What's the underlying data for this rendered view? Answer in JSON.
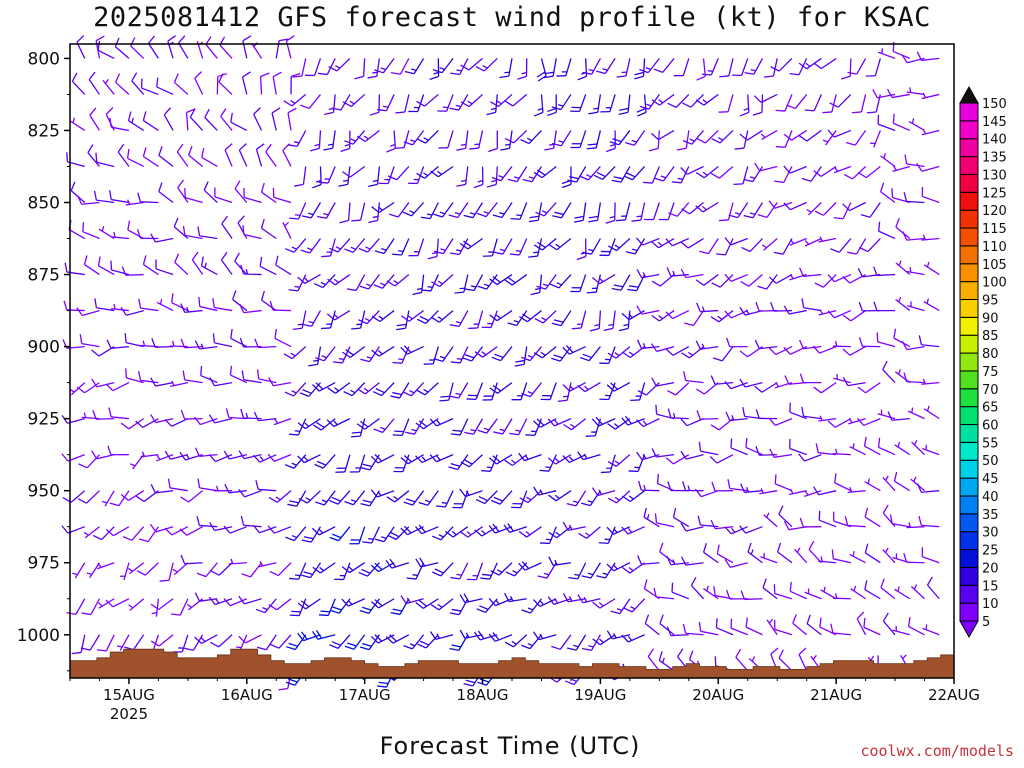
{
  "title": "2025081412 GFS forecast wind profile (kt) for KSAC",
  "credit": "coolwx.com/models",
  "chart_data": {
    "type": "wind-barb-profile",
    "xlabel": "Forecast Time (UTC)",
    "x_ticks": [
      "15AUG",
      "16AUG",
      "17AUG",
      "18AUG",
      "19AUG",
      "20AUG",
      "21AUG",
      "22AUG"
    ],
    "x_year_label": "2025",
    "y_ticks": [
      800,
      825,
      850,
      875,
      900,
      925,
      950,
      975,
      1000
    ],
    "y_range": [
      1015,
      795
    ],
    "x_range_days": [
      14.5,
      22.0
    ],
    "pressure_levels": [
      800,
      812.5,
      825,
      837.5,
      850,
      862.5,
      875,
      887.5,
      900,
      912.5,
      925,
      937.5,
      950,
      962.5,
      975,
      987.5,
      1000,
      1012.5
    ],
    "time_steps_hours": 3,
    "colorbar": {
      "levels": [
        5,
        10,
        15,
        20,
        25,
        30,
        35,
        40,
        45,
        50,
        55,
        60,
        65,
        70,
        75,
        80,
        85,
        90,
        95,
        100,
        105,
        110,
        115,
        120,
        125,
        130,
        135,
        140,
        145,
        150
      ],
      "colors": [
        "#7f00ff",
        "#5a00f0",
        "#3000e0",
        "#0010d8",
        "#0030e8",
        "#0058f0",
        "#0080f0",
        "#00a8f0",
        "#00d0e8",
        "#00e8c8",
        "#00e0a0",
        "#00e070",
        "#20e040",
        "#50e020",
        "#90e810",
        "#c8f000",
        "#f0f000",
        "#f8d000",
        "#f8b000",
        "#f89000",
        "#f07000",
        "#f05000",
        "#f03000",
        "#f01010",
        "#f00040",
        "#f00070",
        "#f000a0",
        "#f000c8",
        "#e800e0",
        "#f000f0"
      ],
      "low_triangle_color": "#7f00ff",
      "high_triangle_color": "#111111"
    },
    "wind": {
      "description": "Barbs sampled every 3 h at each pressure level; direction in degrees (from), speed in kt",
      "day_regimes": [
        {
          "day": "14AUG-15AUG",
          "dir_low": 200,
          "dir_high": 320,
          "spd_low": 8,
          "spd_high": 10
        },
        {
          "day": "15AUG-16AUG",
          "dir_low": 220,
          "dir_high": 340,
          "spd_low": 10,
          "spd_high": 10
        },
        {
          "day": "16AUG-17AUG",
          "dir_low": 230,
          "dir_high": 200,
          "spd_low": 20,
          "spd_high": 12
        },
        {
          "day": "17AUG-18AUG",
          "dir_low": 235,
          "dir_high": 200,
          "spd_low": 18,
          "spd_high": 14
        },
        {
          "day": "18AUG-19AUG",
          "dir_low": 240,
          "dir_high": 195,
          "spd_low": 15,
          "spd_high": 17
        },
        {
          "day": "19AUG-20AUG",
          "dir_low": 300,
          "dir_high": 200,
          "spd_low": 10,
          "spd_high": 12
        },
        {
          "day": "20AUG-21AUG",
          "dir_low": 310,
          "dir_high": 210,
          "spd_low": 8,
          "spd_high": 10
        },
        {
          "day": "21AUG-22AUG",
          "dir_low": 300,
          "dir_high": 280,
          "spd_low": 8,
          "spd_high": 8
        }
      ]
    },
    "terrain_surface_pressure": [
      1009,
      1009,
      1008,
      1006,
      1005,
      1005,
      1005,
      1006,
      1008,
      1008,
      1008,
      1007,
      1005,
      1005,
      1007,
      1009,
      1010,
      1010,
      1009,
      1008,
      1008,
      1009,
      1010,
      1011,
      1011,
      1010,
      1009,
      1009,
      1009,
      1010,
      1010,
      1010,
      1009,
      1008,
      1009,
      1010,
      1010,
      1010,
      1011,
      1010,
      1010,
      1011,
      1011,
      1012,
      1012,
      1011,
      1010,
      1011,
      1011,
      1012,
      1012,
      1011,
      1011,
      1012,
      1012,
      1011,
      1010,
      1009,
      1009,
      1009,
      1010,
      1010,
      1010,
      1009,
      1008,
      1007
    ],
    "terrain_color": "#a0522d"
  }
}
